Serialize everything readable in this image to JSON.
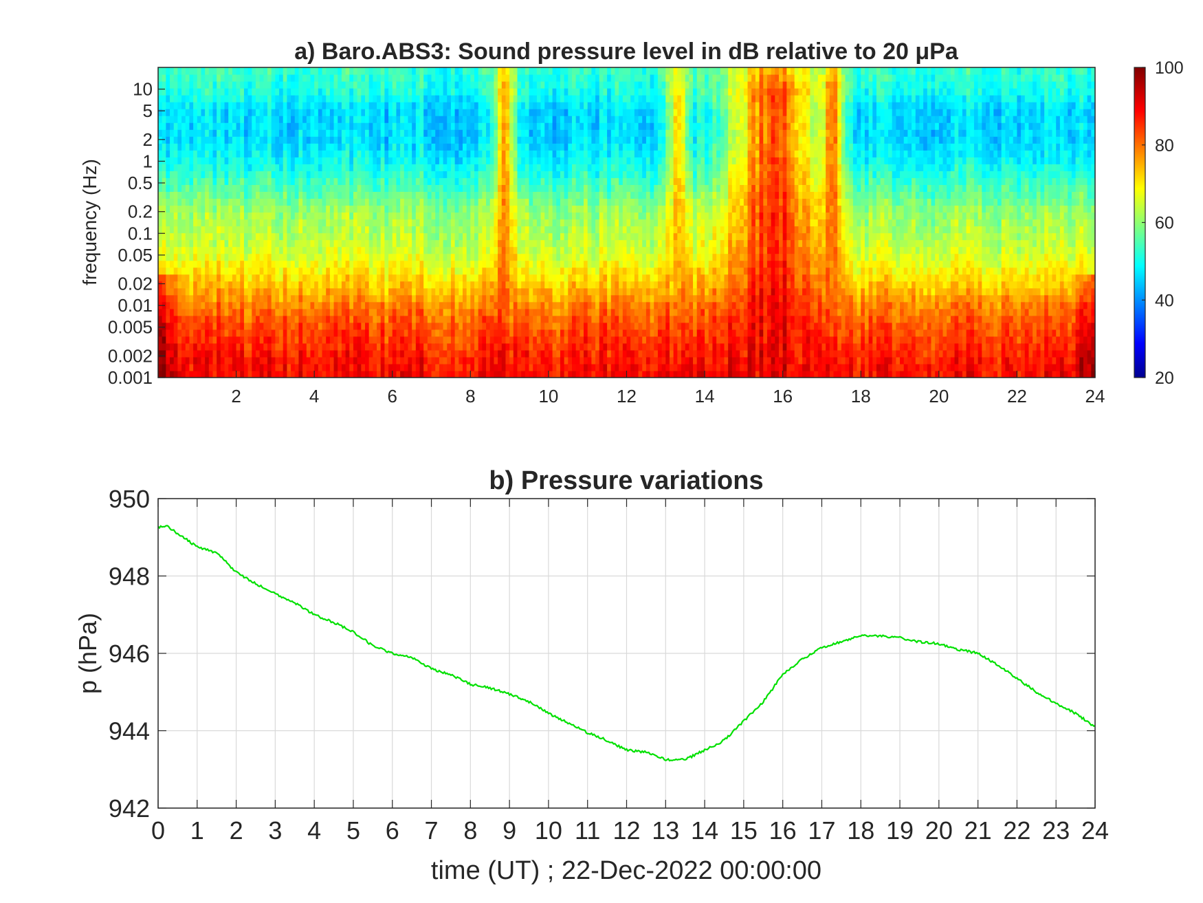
{
  "chart_data": [
    {
      "type": "heatmap",
      "title": "a) Baro.ABS3: Sound pressure level in dB relative to 20 μPa",
      "xlabel": "",
      "ylabel": "frequency (Hz)",
      "xlim": [
        0,
        24
      ],
      "ylim": [
        0.001,
        20
      ],
      "y_scale": "log",
      "x_ticks": [
        2,
        4,
        6,
        8,
        10,
        12,
        14,
        16,
        18,
        20,
        22,
        24
      ],
      "x_tick_labels": [
        "2",
        "4",
        "6",
        "8",
        "10",
        "12",
        "14",
        "16",
        "18",
        "20",
        "22",
        "24"
      ],
      "y_ticks": [
        0.001,
        0.002,
        0.005,
        0.01,
        0.02,
        0.05,
        0.1,
        0.2,
        0.5,
        1,
        2,
        5,
        10
      ],
      "y_tick_labels": [
        "0.001",
        "0.002",
        "0.005",
        "0.01",
        "0.02",
        "0.05",
        "0.1",
        "0.2",
        "0.5",
        "1",
        "2",
        "5",
        "10"
      ],
      "colormap": "jet",
      "color_limits": [
        20,
        100
      ],
      "colorbar_ticks": [
        20,
        40,
        60,
        80,
        100
      ],
      "colorbar_tick_labels": [
        "20",
        "40",
        "60",
        "80",
        "100"
      ],
      "colorbar_position": "right",
      "grid": false,
      "band_level_profile": {
        "freq_hz": [
          0.001,
          0.002,
          0.005,
          0.01,
          0.02,
          0.05,
          0.1,
          0.2,
          0.5,
          1,
          2,
          5,
          10,
          20
        ],
        "typical_db": [
          90,
          88,
          84,
          80,
          74,
          67,
          64,
          62,
          55,
          50,
          47,
          47,
          52,
          54
        ]
      },
      "high_energy_events": [
        {
          "time_h": 8.9,
          "peak_db": 82
        },
        {
          "time_h": 13.3,
          "peak_db": 78
        },
        {
          "time_h": 15.8,
          "peak_db": 92
        },
        {
          "time_h": 17.3,
          "peak_db": 80
        }
      ]
    },
    {
      "type": "line",
      "title": "b) Pressure variations",
      "xlabel": "time (UT) ; 22-Dec-2022 00:00:00",
      "ylabel": "p (hPa)",
      "xlim": [
        0,
        24
      ],
      "ylim": [
        942,
        950
      ],
      "x_ticks": [
        0,
        1,
        2,
        3,
        4,
        5,
        6,
        7,
        8,
        9,
        10,
        11,
        12,
        13,
        14,
        15,
        16,
        17,
        18,
        19,
        20,
        21,
        22,
        23,
        24
      ],
      "x_tick_labels": [
        "0",
        "1",
        "2",
        "3",
        "4",
        "5",
        "6",
        "7",
        "8",
        "9",
        "10",
        "11",
        "12",
        "13",
        "14",
        "15",
        "16",
        "17",
        "18",
        "19",
        "20",
        "21",
        "22",
        "23",
        "24"
      ],
      "y_ticks": [
        942,
        944,
        946,
        948,
        950
      ],
      "y_tick_labels": [
        "942",
        "944",
        "946",
        "948",
        "950"
      ],
      "grid": true,
      "series": [
        {
          "color": "#00e000",
          "x": [
            0,
            0.2,
            0.5,
            1,
            1.5,
            2,
            2.5,
            3,
            3.5,
            4,
            4.5,
            5,
            5.5,
            6,
            6.5,
            7,
            7.5,
            8,
            8.5,
            9,
            9.5,
            10,
            10.5,
            11,
            11.5,
            12,
            12.5,
            13,
            13.5,
            14,
            14.5,
            15,
            15.5,
            16,
            16.5,
            17,
            17.5,
            18,
            18.5,
            19,
            19.5,
            20,
            20.5,
            21,
            21.5,
            22,
            22.5,
            23,
            23.5,
            24
          ],
          "y": [
            949.25,
            949.3,
            949.1,
            948.75,
            948.6,
            948.1,
            947.8,
            947.55,
            947.3,
            947.0,
            946.8,
            946.55,
            946.2,
            946.0,
            945.9,
            945.6,
            945.45,
            945.2,
            945.1,
            944.95,
            944.75,
            944.45,
            944.2,
            943.95,
            943.75,
            943.5,
            943.45,
            943.25,
            943.25,
            943.5,
            943.75,
            944.25,
            944.75,
            945.45,
            945.85,
            946.15,
            946.3,
            946.45,
            946.45,
            946.4,
            946.3,
            946.25,
            946.1,
            946.0,
            945.7,
            945.35,
            945.0,
            944.7,
            944.45,
            944.1
          ]
        }
      ]
    }
  ]
}
